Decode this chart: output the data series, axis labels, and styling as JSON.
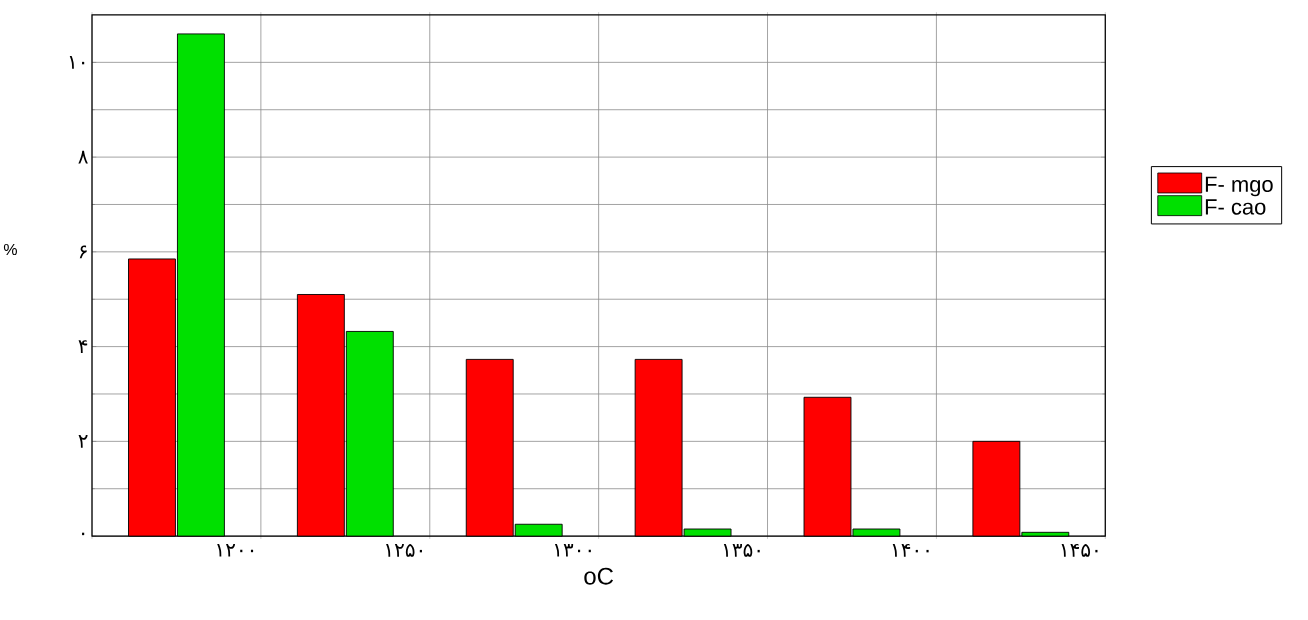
{
  "chart_data": {
    "type": "bar",
    "xlabel": "oC",
    "ylabel": "%",
    "categories": [
      "۱۲۰۰",
      "۱۲۵۰",
      "۱۳۰۰",
      "۱۳۵۰",
      "۱۴۰۰",
      "۱۴۵۰"
    ],
    "series": [
      {
        "name": "F- mgo",
        "color": "#ff0000",
        "values": [
          5.85,
          5.1,
          3.73,
          3.73,
          2.93,
          2.0
        ]
      },
      {
        "name": "F- cao",
        "color": "#00e000",
        "values": [
          10.6,
          4.32,
          0.25,
          0.15,
          0.15,
          0.08
        ]
      }
    ],
    "ylim": [
      0,
      11
    ],
    "yticks": [
      {
        "value": 0,
        "label": "۰"
      },
      {
        "value": 2,
        "label": "۲"
      },
      {
        "value": 4,
        "label": "۴"
      },
      {
        "value": 6,
        "label": "۶"
      },
      {
        "value": 8,
        "label": "۸"
      },
      {
        "value": 10,
        "label": "۱۰"
      }
    ],
    "grid": true,
    "legend": "right"
  }
}
